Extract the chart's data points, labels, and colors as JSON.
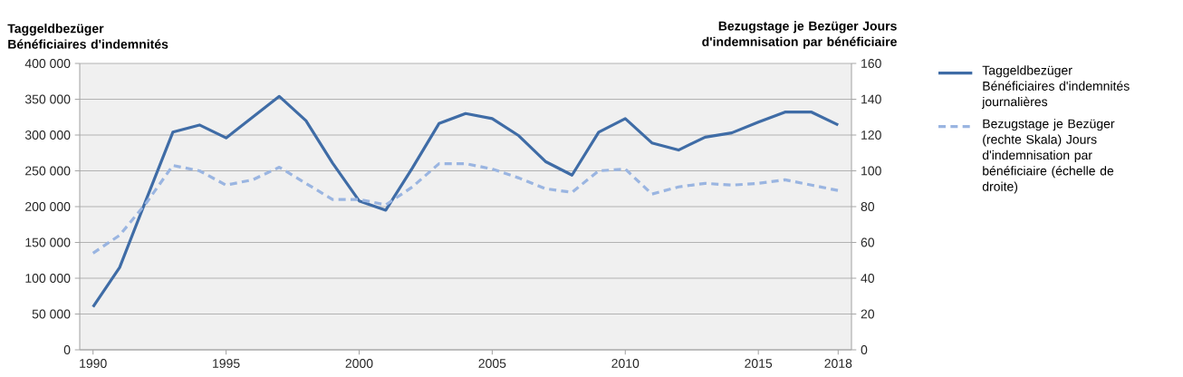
{
  "chart_data": {
    "type": "line",
    "ylabel": "Taggeldbezüger Bénéficiaires d'indemnités",
    "y2label": "Bezugstage je Bezüger Jours d'indemnisation par bénéficiaire",
    "x": [
      1990,
      1991,
      1992,
      1993,
      1994,
      1995,
      1996,
      1997,
      1998,
      1999,
      2000,
      2001,
      2002,
      2003,
      2004,
      2005,
      2006,
      2007,
      2008,
      2009,
      2010,
      2011,
      2012,
      2013,
      2014,
      2015,
      2016,
      2017,
      2018
    ],
    "xlim": [
      1989.5,
      2018.5
    ],
    "xticks": [
      1990,
      1995,
      2000,
      2005,
      2010,
      2015,
      2018
    ],
    "ylim": [
      0,
      400000
    ],
    "yticks": [
      0,
      {
        "value": 50000,
        "label": "50 000"
      },
      {
        "value": 100000,
        "label": "100 000"
      },
      {
        "value": 150000,
        "label": "150 000"
      },
      {
        "value": 200000,
        "label": "200 000"
      },
      {
        "value": 250000,
        "label": "250 000"
      },
      {
        "value": 300000,
        "label": "300 000"
      },
      {
        "value": 350000,
        "label": "350 000"
      },
      {
        "value": 400000,
        "label": "400 000"
      }
    ],
    "y2lim": [
      0,
      160
    ],
    "y2ticks": [
      0,
      20,
      40,
      60,
      80,
      100,
      120,
      140,
      160
    ],
    "grid": "y",
    "legend": "right",
    "marker": "none",
    "series": [
      {
        "name": "Taggeldbezüger Bénéficiaires d'indemnités journalières",
        "color": "#3f6ca6",
        "line_style": "solid",
        "values": [
          60000,
          115000,
          210000,
          304000,
          314000,
          296000,
          325000,
          354000,
          320000,
          261000,
          208000,
          195000,
          254000,
          316000,
          330000,
          323000,
          299000,
          263000,
          244000,
          304000,
          323000,
          289000,
          279000,
          297000,
          303000,
          318000,
          332000,
          332000,
          314000
        ]
      },
      {
        "name": "Bezugstage je Bezüger (rechte Skala) Jours d'indemnisation par bénéficiaire (échelle de droite)",
        "color": "#9ab5e1",
        "line_style": "dashed",
        "axis": "y2",
        "values": [
          54,
          64,
          82,
          103,
          100,
          92,
          95,
          102,
          93,
          84,
          84,
          81,
          91,
          104,
          104,
          101,
          96,
          90,
          88,
          100,
          101,
          87,
          91,
          93,
          92,
          93,
          95,
          92,
          89
        ]
      }
    ]
  }
}
